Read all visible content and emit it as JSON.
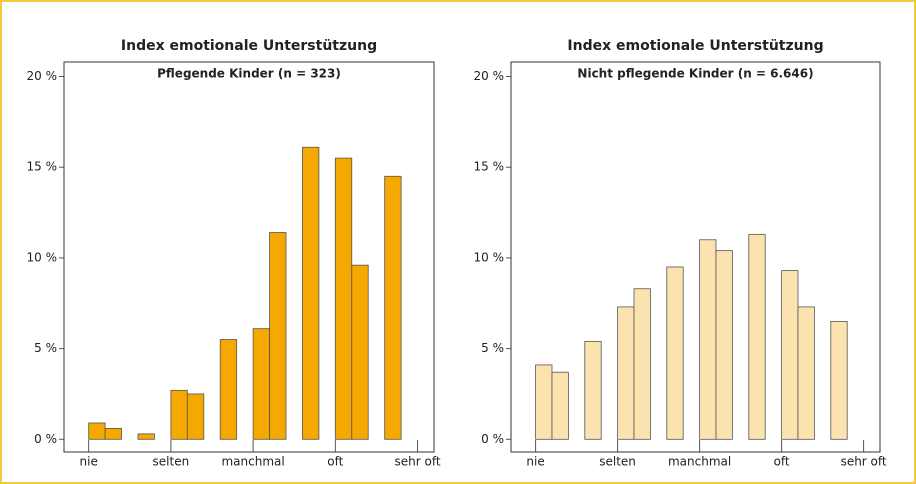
{
  "chart_data": [
    {
      "type": "histogram",
      "title": "Index emotionale Unterstützung",
      "subtitle": "Pflegende Kinder (n = 323)",
      "bins": [
        1.0,
        1.2,
        1.4,
        1.6,
        1.8,
        2.0,
        2.2,
        2.4,
        2.6,
        2.8,
        3.0,
        3.2,
        3.4,
        3.6,
        3.8,
        4.0,
        4.2,
        4.4,
        4.6,
        4.8,
        5.0
      ],
      "values": [
        0.9,
        0.6,
        0,
        0.3,
        0,
        2.7,
        2.5,
        0,
        5.5,
        0,
        6.1,
        11.4,
        0,
        16.1,
        0,
        15.5,
        9.6,
        0,
        14.5,
        0
      ],
      "color": "#f5a800",
      "xlim": [
        0.7,
        5.2
      ],
      "xticks": [
        {
          "value": 1,
          "label": "nie"
        },
        {
          "value": 2,
          "label": "selten"
        },
        {
          "value": 3,
          "label": "manchmal"
        },
        {
          "value": 4,
          "label": "oft"
        },
        {
          "value": 5,
          "label": "sehr oft"
        }
      ],
      "ylim": [
        -0.7,
        20.8
      ],
      "yticks": [
        {
          "value": 0,
          "label": "0 %"
        },
        {
          "value": 5,
          "label": "5 %"
        },
        {
          "value": 10,
          "label": "10 %"
        },
        {
          "value": 15,
          "label": "15 %"
        },
        {
          "value": 20,
          "label": "20 %"
        }
      ]
    },
    {
      "type": "histogram",
      "title": "Index emotionale Unterstützung",
      "subtitle": "Nicht pflegende Kinder (n = 6.646)",
      "bins": [
        1.0,
        1.2,
        1.4,
        1.6,
        1.8,
        2.0,
        2.2,
        2.4,
        2.6,
        2.8,
        3.0,
        3.2,
        3.4,
        3.6,
        3.8,
        4.0,
        4.2,
        4.4,
        4.6,
        4.8,
        5.0
      ],
      "values": [
        4.1,
        3.7,
        0,
        5.4,
        0,
        7.3,
        8.3,
        0,
        9.5,
        0,
        11.0,
        10.4,
        0,
        11.3,
        0,
        9.3,
        7.3,
        0,
        6.5,
        0
      ],
      "color": "#fbe3b0",
      "xlim": [
        0.7,
        5.2
      ],
      "xticks": [
        {
          "value": 1,
          "label": "nie"
        },
        {
          "value": 2,
          "label": "selten"
        },
        {
          "value": 3,
          "label": "manchmal"
        },
        {
          "value": 4,
          "label": "oft"
        },
        {
          "value": 5,
          "label": "sehr oft"
        }
      ],
      "ylim": [
        -0.7,
        20.8
      ],
      "yticks": [
        {
          "value": 0,
          "label": "0 %"
        },
        {
          "value": 5,
          "label": "5 %"
        },
        {
          "value": 10,
          "label": "10 %"
        },
        {
          "value": 15,
          "label": "15 %"
        },
        {
          "value": 20,
          "label": "20 %"
        }
      ]
    }
  ]
}
